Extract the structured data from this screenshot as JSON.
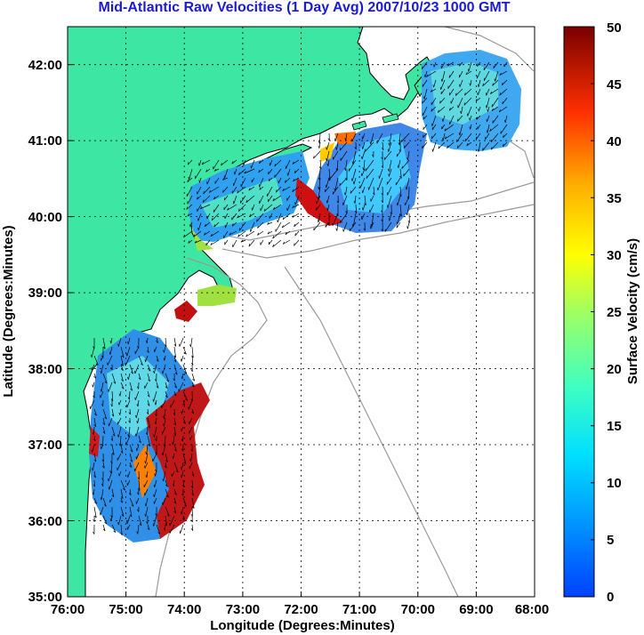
{
  "title": "Mid-Atlantic Raw Velocities (1 Day Avg) 2007/10/23 1000 GMT",
  "xaxis": {
    "label": "Longitude (Degrees:Minutes)",
    "ticks": [
      "76:00",
      "75:00",
      "74:00",
      "73:00",
      "72:00",
      "71:00",
      "70:00",
      "69:00",
      "68:00"
    ]
  },
  "yaxis": {
    "label": "Latitude (Degrees:Minutes)",
    "ticks": [
      "42:00",
      "41:00",
      "40:00",
      "39:00",
      "38:00",
      "37:00",
      "36:00",
      "35:00"
    ]
  },
  "colorbar": {
    "label": "Surface Velocity (cm/s)",
    "ticks": [
      "50",
      "45",
      "40",
      "35",
      "30",
      "25",
      "20",
      "15",
      "10",
      "5",
      "0"
    ],
    "min": 0,
    "max": 50
  },
  "colors": {
    "land": "#3ee6a4",
    "title": "#1a1ad6",
    "grid": "#000000",
    "bathymetry": "#9a9a9a"
  }
}
